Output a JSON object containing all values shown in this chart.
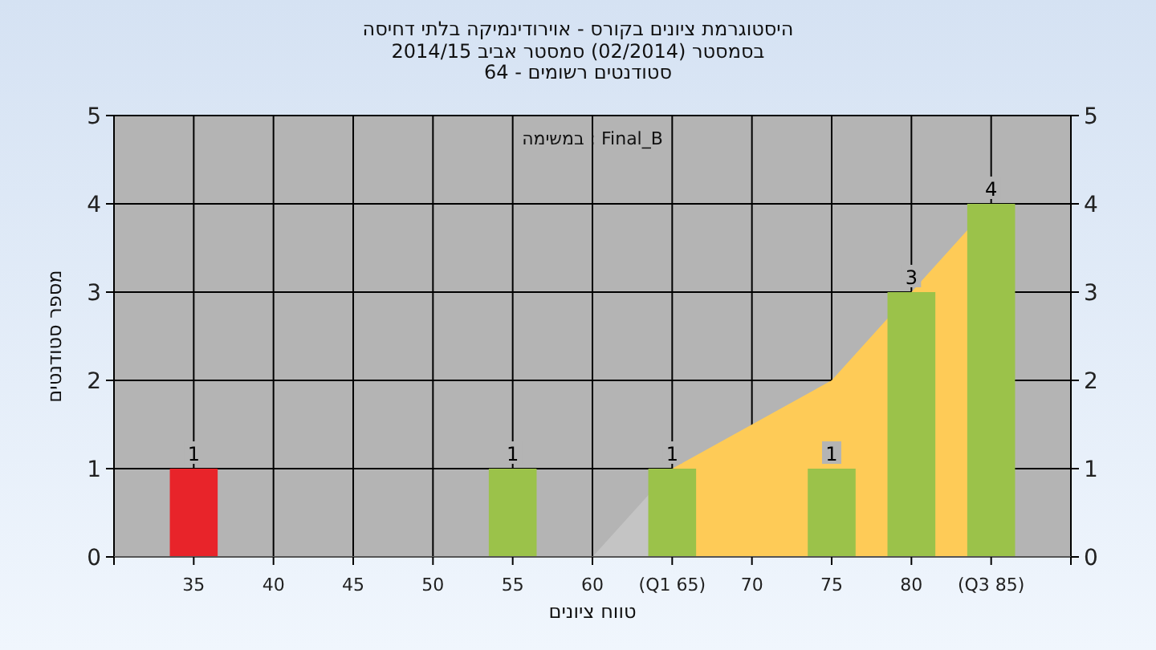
{
  "chart_data": {
    "type": "bar",
    "title": "היסטוגרמת ציונים בקורס - אוירודינמיקה בלתי דחיסה",
    "subtitle": "בסמסטר (02/2014) סמסטר אביב 2014/15\nסטודנטים רשומים - 64",
    "xlabel": "טווח ציונים",
    "ylabel": "מספר סטודנטים",
    "annotations": [
      "במשימה : Final_B"
    ],
    "xlim": [
      30,
      90
    ],
    "xticks": [
      {
        "value": 30,
        "label": null
      },
      35,
      40,
      45,
      50,
      55,
      60,
      {
        "value": 65,
        "label": "(Q1 65)"
      },
      70,
      75,
      80,
      {
        "value": 85,
        "label": "(Q3 85)"
      },
      {
        "value": 90,
        "label": null
      }
    ],
    "ylim": [
      0,
      5
    ],
    "yticks": [
      0,
      1,
      2,
      3,
      4,
      5
    ],
    "y2lim": [
      0,
      5
    ],
    "y2ticks": [
      0,
      1,
      2,
      3,
      4,
      5
    ],
    "grid": true,
    "series": [
      {
        "type": "area",
        "color": "#c4c4c4",
        "x": [
          60,
          65
        ],
        "values": [
          0,
          1
        ]
      },
      {
        "type": "area",
        "color": "#fecb57",
        "x": [
          65,
          70,
          75,
          80,
          85
        ],
        "values": [
          1,
          1.5,
          2,
          3,
          4
        ]
      },
      {
        "x": [
          35,
          55,
          65,
          75,
          80,
          85
        ],
        "values": [
          1,
          1,
          1,
          1,
          3,
          4
        ],
        "colors": [
          "#e8242a",
          "#9bc24a",
          "#9bc24a",
          "#9bc24a",
          "#9bc24a",
          "#9bc24a"
        ],
        "value_labels": [
          "1",
          "1",
          "1",
          "1",
          "3",
          "4"
        ]
      }
    ]
  }
}
